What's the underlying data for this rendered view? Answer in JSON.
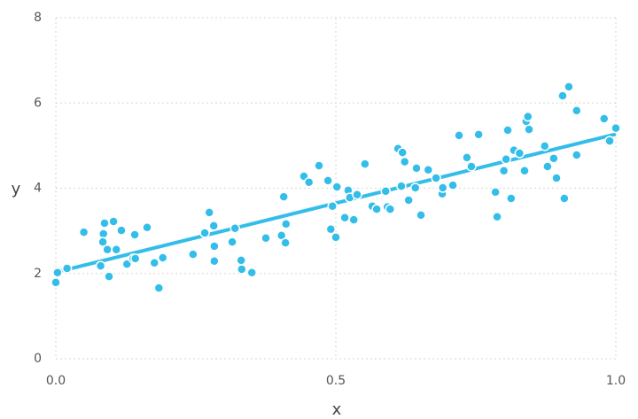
{
  "chart_data": {
    "type": "scatter",
    "x_label": "x",
    "y_label": "y",
    "xlim": [
      0,
      1
    ],
    "ylim": [
      0,
      8
    ],
    "xticks": [
      {
        "value": 0,
        "label": "0.0"
      },
      0.5,
      {
        "value": 1,
        "label": "1.0"
      }
    ],
    "yticks": [
      0,
      2,
      4,
      6,
      8
    ],
    "grid": true,
    "series": [
      {
        "kind": "points",
        "color": "#33bde9",
        "x": [
          0.0,
          0.003,
          0.02,
          0.05,
          0.08,
          0.085,
          0.087,
          0.084,
          0.092,
          0.095,
          0.103,
          0.108,
          0.117,
          0.127,
          0.138,
          0.141,
          0.142,
          0.163,
          0.176,
          0.184,
          0.191,
          0.245,
          0.266,
          0.274,
          0.282,
          0.283,
          0.283,
          0.315,
          0.32,
          0.331,
          0.332,
          0.35,
          0.375,
          0.403,
          0.407,
          0.41,
          0.411,
          0.443,
          0.452,
          0.47,
          0.486,
          0.491,
          0.494,
          0.5,
          0.502,
          0.516,
          0.522,
          0.525,
          0.532,
          0.538,
          0.552,
          0.565,
          0.573,
          0.589,
          0.592,
          0.597,
          0.611,
          0.617,
          0.619,
          0.623,
          0.63,
          0.644,
          0.642,
          0.652,
          0.665,
          0.679,
          0.69,
          0.691,
          0.709,
          0.72,
          0.734,
          0.742,
          0.755,
          0.785,
          0.788,
          0.8,
          0.804,
          0.807,
          0.813,
          0.818,
          0.828,
          0.837,
          0.84,
          0.843,
          0.845,
          0.873,
          0.878,
          0.889,
          0.894,
          0.905,
          0.908,
          0.916,
          0.93,
          0.93,
          0.979,
          0.989,
          1.0
        ],
        "values": [
          1.79,
          2.02,
          2.12,
          2.97,
          2.18,
          2.93,
          3.18,
          2.74,
          2.56,
          1.93,
          3.22,
          2.56,
          3.01,
          2.22,
          2.35,
          2.91,
          2.35,
          3.08,
          2.25,
          1.66,
          2.37,
          2.45,
          2.95,
          3.43,
          3.12,
          2.64,
          2.29,
          2.74,
          3.06,
          2.31,
          2.1,
          2.02,
          2.83,
          2.89,
          3.8,
          2.72,
          3.16,
          4.28,
          4.14,
          4.53,
          4.18,
          3.04,
          3.58,
          2.85,
          4.03,
          3.31,
          3.95,
          3.78,
          3.26,
          3.85,
          4.57,
          3.58,
          3.51,
          3.93,
          3.56,
          3.51,
          4.93,
          4.05,
          4.84,
          4.62,
          3.72,
          4.47,
          4.01,
          3.37,
          4.43,
          4.24,
          3.87,
          4.01,
          4.07,
          5.24,
          4.72,
          4.51,
          5.26,
          3.91,
          3.33,
          4.41,
          4.68,
          5.36,
          3.76,
          4.89,
          4.82,
          4.41,
          5.57,
          5.68,
          5.38,
          4.99,
          4.51,
          4.7,
          4.24,
          6.17,
          3.76,
          6.38,
          4.78,
          5.82,
          5.63,
          5.11,
          5.41
        ]
      },
      {
        "kind": "line",
        "color": "#33bde9",
        "x": [
          0,
          1
        ],
        "values": [
          2.03,
          5.27
        ]
      }
    ]
  }
}
